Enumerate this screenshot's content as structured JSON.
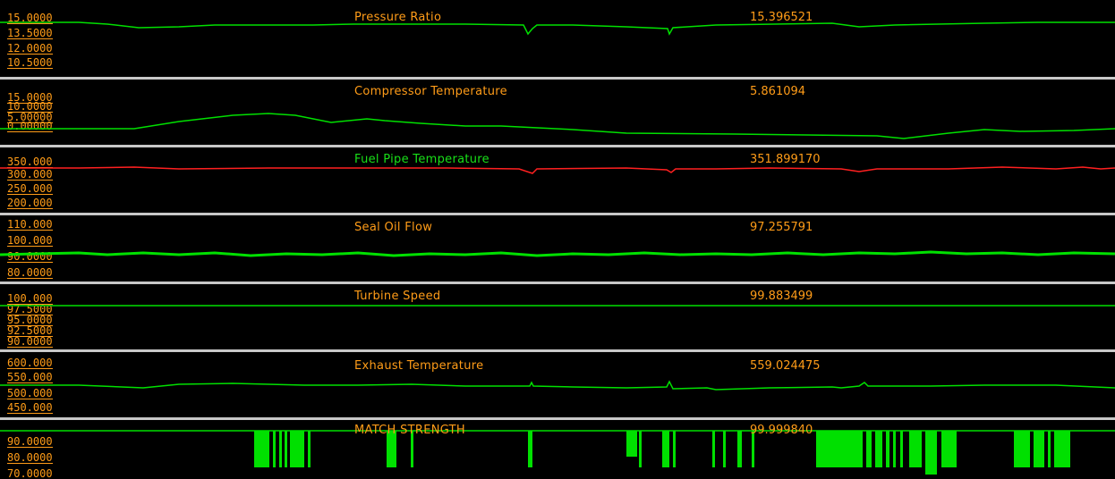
{
  "colors": {
    "background": "#000000",
    "label": "#ff9c18",
    "trace_normal": "#00e000",
    "trace_alert": "#ff2020",
    "separator": "#c8c8c8",
    "title_alert": "#18e018"
  },
  "channels": [
    {
      "title": "Pressure Ratio",
      "value": "15.396521",
      "ticks": [
        "15.0000",
        "13.5000",
        "12.0000",
        "10.5000"
      ],
      "trace_color": "#00e000"
    },
    {
      "title": "Compressor Temperature",
      "value": "5.861094",
      "ticks": [
        "15.0000",
        "10.0000",
        "5.00000",
        "0.00000"
      ],
      "trace_color": "#00e000"
    },
    {
      "title": "Fuel Pipe Temperature",
      "value": "351.899170",
      "ticks": [
        "350.000",
        "300.000",
        "250.000",
        "200.000"
      ],
      "trace_color": "#ff2020",
      "title_color": "#18e018"
    },
    {
      "title": "Seal Oil Flow",
      "value": "97.255791",
      "ticks": [
        "110.000",
        "100.000",
        "90.0000",
        "80.0000"
      ],
      "trace_color": "#00e000"
    },
    {
      "title": "Turbine Speed",
      "value": "99.883499",
      "ticks": [
        "100.000",
        "97.5000",
        "95.0000",
        "92.5000",
        "90.0000"
      ],
      "trace_color": "#00e000"
    },
    {
      "title": "Exhaust Temperature",
      "value": "559.024475",
      "ticks": [
        "600.000",
        "550.000",
        "500.000",
        "450.000"
      ],
      "trace_color": "#00e000"
    },
    {
      "title": "MATCH STRENGTH",
      "value": "99.999840",
      "ticks": [
        "90.0000",
        "80.0000",
        "70.0000"
      ],
      "trace_color": "#00e000"
    }
  ]
}
